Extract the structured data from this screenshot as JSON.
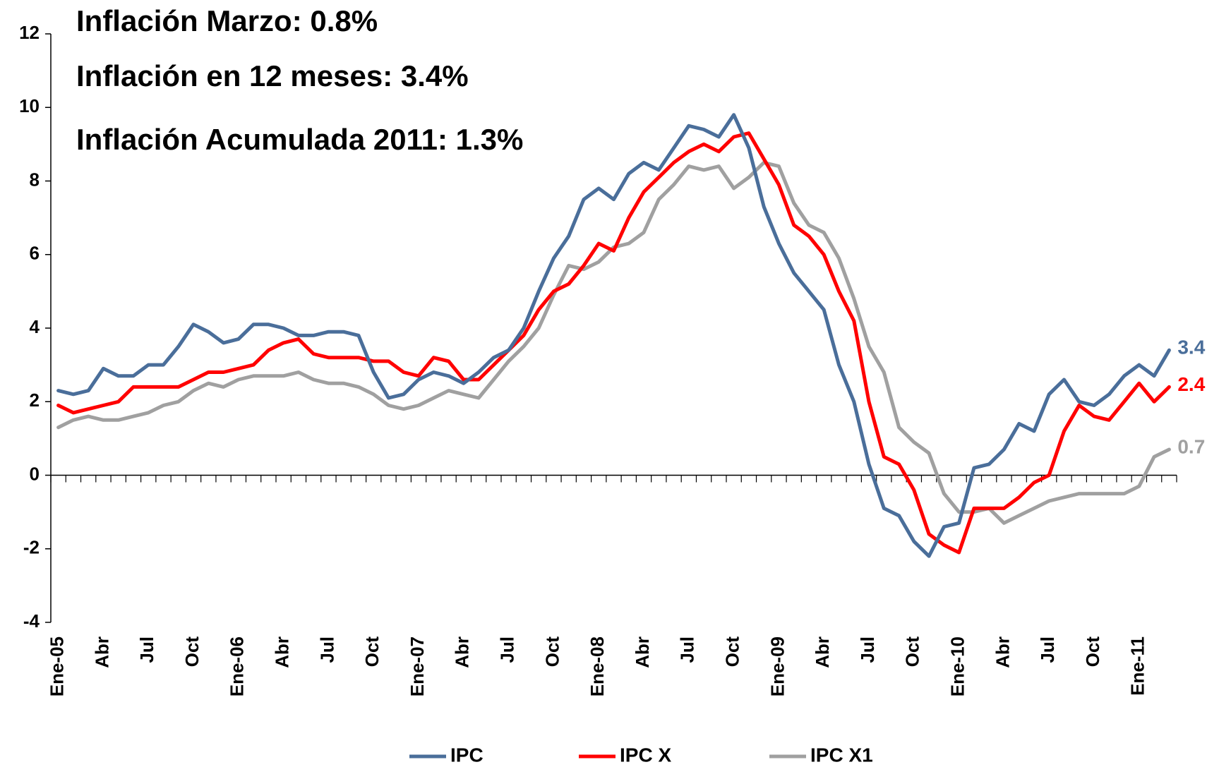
{
  "chart_data": {
    "type": "line",
    "annotations": [
      "Inflación Marzo: 0.8%",
      "Inflación en 12 meses: 3.4%",
      "Inflación Acumulada 2011: 1.3%"
    ],
    "categories": [
      "Ene-05",
      null,
      null,
      "Abr",
      null,
      null,
      "Jul",
      null,
      null,
      "Oct",
      null,
      null,
      "Ene-06",
      null,
      null,
      "Abr",
      null,
      null,
      "Jul",
      null,
      null,
      "Oct",
      null,
      null,
      "Ene-07",
      null,
      null,
      "Abr",
      null,
      null,
      "Jul",
      null,
      null,
      "Oct",
      null,
      null,
      "Ene-08",
      null,
      null,
      "Abr",
      null,
      null,
      "Jul",
      null,
      null,
      "Oct",
      null,
      null,
      "Ene-09",
      null,
      null,
      "Abr",
      null,
      null,
      "Jul",
      null,
      null,
      "Oct",
      null,
      null,
      "Ene-10",
      null,
      null,
      "Abr",
      null,
      null,
      "Jul",
      null,
      null,
      "Oct",
      null,
      null,
      "Ene-11",
      null,
      null
    ],
    "series": [
      {
        "name": "IPC",
        "color": "#4a6e9a",
        "values": [
          2.3,
          2.2,
          2.3,
          2.9,
          2.7,
          2.7,
          3.0,
          3.0,
          3.5,
          4.1,
          3.9,
          3.6,
          3.7,
          4.1,
          4.1,
          4.0,
          3.8,
          3.8,
          3.9,
          3.9,
          3.8,
          2.8,
          2.1,
          2.2,
          2.6,
          2.8,
          2.7,
          2.5,
          2.8,
          3.2,
          3.4,
          4.0,
          5.0,
          5.9,
          6.5,
          7.5,
          7.8,
          7.5,
          8.2,
          8.5,
          8.3,
          8.9,
          9.5,
          9.4,
          9.2,
          9.8,
          8.9,
          7.3,
          6.3,
          5.5,
          5.0,
          4.5,
          3.0,
          2.0,
          0.3,
          -0.9,
          -1.1,
          -1.8,
          -2.2,
          -1.4,
          -1.3,
          0.2,
          0.3,
          0.7,
          1.4,
          1.2,
          2.2,
          2.6,
          2.0,
          1.9,
          2.2,
          2.7,
          3.0,
          2.7,
          3.4
        ]
      },
      {
        "name": "IPC X",
        "color": "#ff0000",
        "values": [
          1.9,
          1.7,
          1.8,
          1.9,
          2.0,
          2.4,
          2.4,
          2.4,
          2.4,
          2.6,
          2.8,
          2.8,
          2.9,
          3.0,
          3.4,
          3.6,
          3.7,
          3.3,
          3.2,
          3.2,
          3.2,
          3.1,
          3.1,
          2.8,
          2.7,
          3.2,
          3.1,
          2.6,
          2.6,
          3.0,
          3.4,
          3.8,
          4.5,
          5.0,
          5.2,
          5.7,
          6.3,
          6.1,
          7.0,
          7.7,
          8.1,
          8.5,
          8.8,
          9.0,
          8.8,
          9.2,
          9.3,
          8.6,
          7.9,
          6.8,
          6.5,
          6.0,
          5.0,
          4.2,
          2.0,
          0.5,
          0.3,
          -0.4,
          -1.6,
          -1.9,
          -2.1,
          -0.9,
          -0.9,
          -0.9,
          -0.6,
          -0.2,
          0.0,
          1.2,
          1.9,
          1.6,
          1.5,
          2.0,
          2.5,
          2.0,
          2.4
        ]
      },
      {
        "name": "IPC X1",
        "color": "#a0a0a0",
        "values": [
          1.3,
          1.5,
          1.6,
          1.5,
          1.5,
          1.6,
          1.7,
          1.9,
          2.0,
          2.3,
          2.5,
          2.4,
          2.6,
          2.7,
          2.7,
          2.7,
          2.8,
          2.6,
          2.5,
          2.5,
          2.4,
          2.2,
          1.9,
          1.8,
          1.9,
          2.1,
          2.3,
          2.2,
          2.1,
          2.6,
          3.1,
          3.5,
          4.0,
          4.9,
          5.7,
          5.6,
          5.8,
          6.2,
          6.3,
          6.6,
          7.5,
          7.9,
          8.4,
          8.3,
          8.4,
          7.8,
          8.1,
          8.5,
          8.4,
          7.4,
          6.8,
          6.6,
          5.9,
          4.8,
          3.5,
          2.8,
          1.3,
          0.9,
          0.6,
          -0.5,
          -1.0,
          -1.0,
          -0.9,
          -1.3,
          -1.1,
          -0.9,
          -0.7,
          -0.6,
          -0.5,
          -0.5,
          -0.5,
          -0.5,
          -0.3,
          0.5,
          0.7
        ]
      }
    ],
    "ylim": [
      -4,
      12
    ],
    "yticks": [
      -4,
      -2,
      0,
      2,
      4,
      6,
      8,
      10,
      12
    ],
    "legend": "bottom"
  }
}
